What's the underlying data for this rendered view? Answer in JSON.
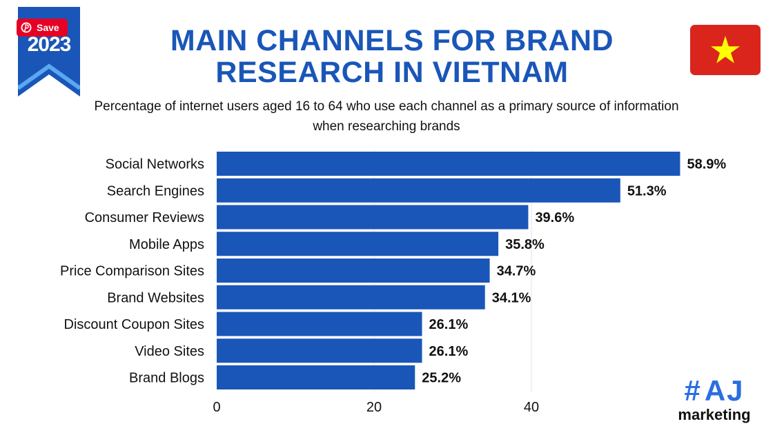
{
  "badge": {
    "year": "2023",
    "color": "#1a56b8"
  },
  "save_button": {
    "label": "Save",
    "icon": "pinterest-icon",
    "color": "#e60023"
  },
  "flag": {
    "name": "vietnam-flag-icon",
    "background": "#da251d",
    "star": "#ffff00"
  },
  "title": "MAIN CHANNELS FOR BRAND RESEARCH IN VIETNAM",
  "subtitle": "Percentage of internet users aged 16 to 64 who use each channel as a primary source of information when researching brands",
  "logo": {
    "hash": "#",
    "letters": "AJ",
    "text": "marketing",
    "accent": "#2a6fe0"
  },
  "chart_data": {
    "type": "bar",
    "orientation": "horizontal",
    "categories": [
      "Social Networks",
      "Search Engines",
      "Consumer Reviews",
      "Mobile Apps",
      "Price Comparison Sites",
      "Brand Websites",
      "Discount Coupon Sites",
      "Video Sites",
      "Brand Blogs"
    ],
    "values": [
      58.9,
      51.3,
      39.6,
      35.8,
      34.7,
      34.1,
      26.1,
      26.1,
      25.2
    ],
    "data_labels": [
      "58.9%",
      "51.3%",
      "39.6%",
      "35.8%",
      "34.7%",
      "34.1%",
      "26.1%",
      "26.1%",
      "25.2%"
    ],
    "xticks": [
      0,
      20,
      40
    ],
    "xlim": [
      0,
      60
    ],
    "grid": "vertical",
    "bar_color": "#1a56b8",
    "grid_color": "#e3e3e3"
  }
}
